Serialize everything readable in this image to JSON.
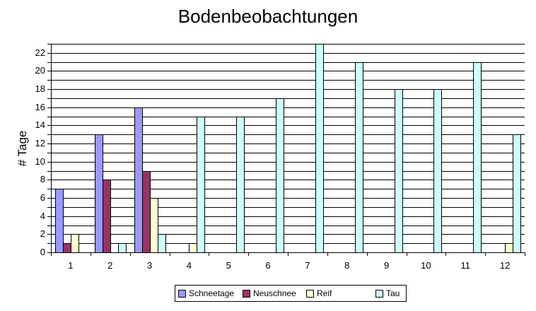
{
  "chart_data": {
    "type": "bar",
    "title": "Bodenbeobachtungen",
    "xlabel": "",
    "ylabel": "# Tage",
    "ylim": [
      0,
      23
    ],
    "yticks": [
      0,
      2,
      4,
      6,
      8,
      10,
      12,
      14,
      16,
      18,
      20,
      22
    ],
    "grid": true,
    "legend_position": "bottom",
    "categories": [
      "1",
      "2",
      "3",
      "4",
      "5",
      "6",
      "7",
      "8",
      "9",
      "10",
      "11",
      "12"
    ],
    "series": [
      {
        "name": "Schneetage",
        "color": "#9999ff",
        "values": [
          7,
          13,
          16,
          0,
          0,
          0,
          0,
          0,
          0,
          0,
          0,
          0
        ]
      },
      {
        "name": "Neuschnee",
        "color": "#993366",
        "values": [
          1,
          8,
          9,
          0,
          0,
          0,
          0,
          0,
          0,
          0,
          0,
          0
        ]
      },
      {
        "name": "Reif",
        "color": "#ffffcc",
        "values": [
          2,
          0,
          6,
          1,
          0,
          0,
          0,
          0,
          0,
          0,
          0,
          1
        ]
      },
      {
        "name": "Tau",
        "color": "#ccffff",
        "values": [
          0,
          1,
          2,
          15,
          15,
          17,
          23,
          21,
          18,
          18,
          21,
          13
        ]
      }
    ]
  }
}
